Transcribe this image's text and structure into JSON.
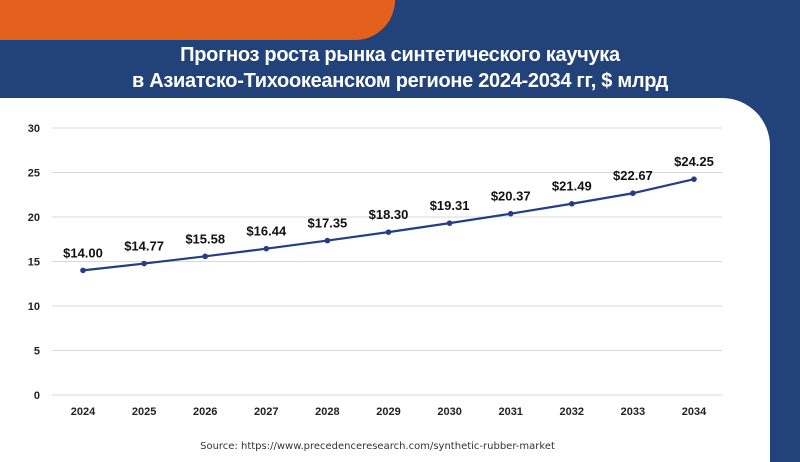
{
  "title": {
    "line1": "Прогноз роста рынка синтетического каучука",
    "line2": "в Азиатско-Тихоокеанском регионе 2024-2034 гг, $ млрд"
  },
  "source": "Source: https://www.precedenceresearch.com/synthetic-rubber-market",
  "colors": {
    "background": "#22437a",
    "accent": "#e3611c",
    "line": "#233e86",
    "grid": "#d9d9d9"
  },
  "chart_data": {
    "type": "line",
    "x": [
      "2024",
      "2025",
      "2026",
      "2027",
      "2028",
      "2029",
      "2030",
      "2031",
      "2032",
      "2033",
      "2034"
    ],
    "values": [
      14.0,
      14.77,
      15.58,
      16.44,
      17.35,
      18.3,
      19.31,
      20.37,
      21.49,
      22.67,
      24.25
    ],
    "data_labels": [
      "$14.00",
      "$14.77",
      "$15.58",
      "$16.44",
      "$17.35",
      "$18.30",
      "$19.31",
      "$20.37",
      "$21.49",
      "$22.67",
      "$24.25"
    ],
    "yticks": [
      0,
      5,
      10,
      15,
      20,
      25,
      30
    ],
    "ylim": [
      0,
      30
    ],
    "grid": true,
    "legend": "none"
  }
}
